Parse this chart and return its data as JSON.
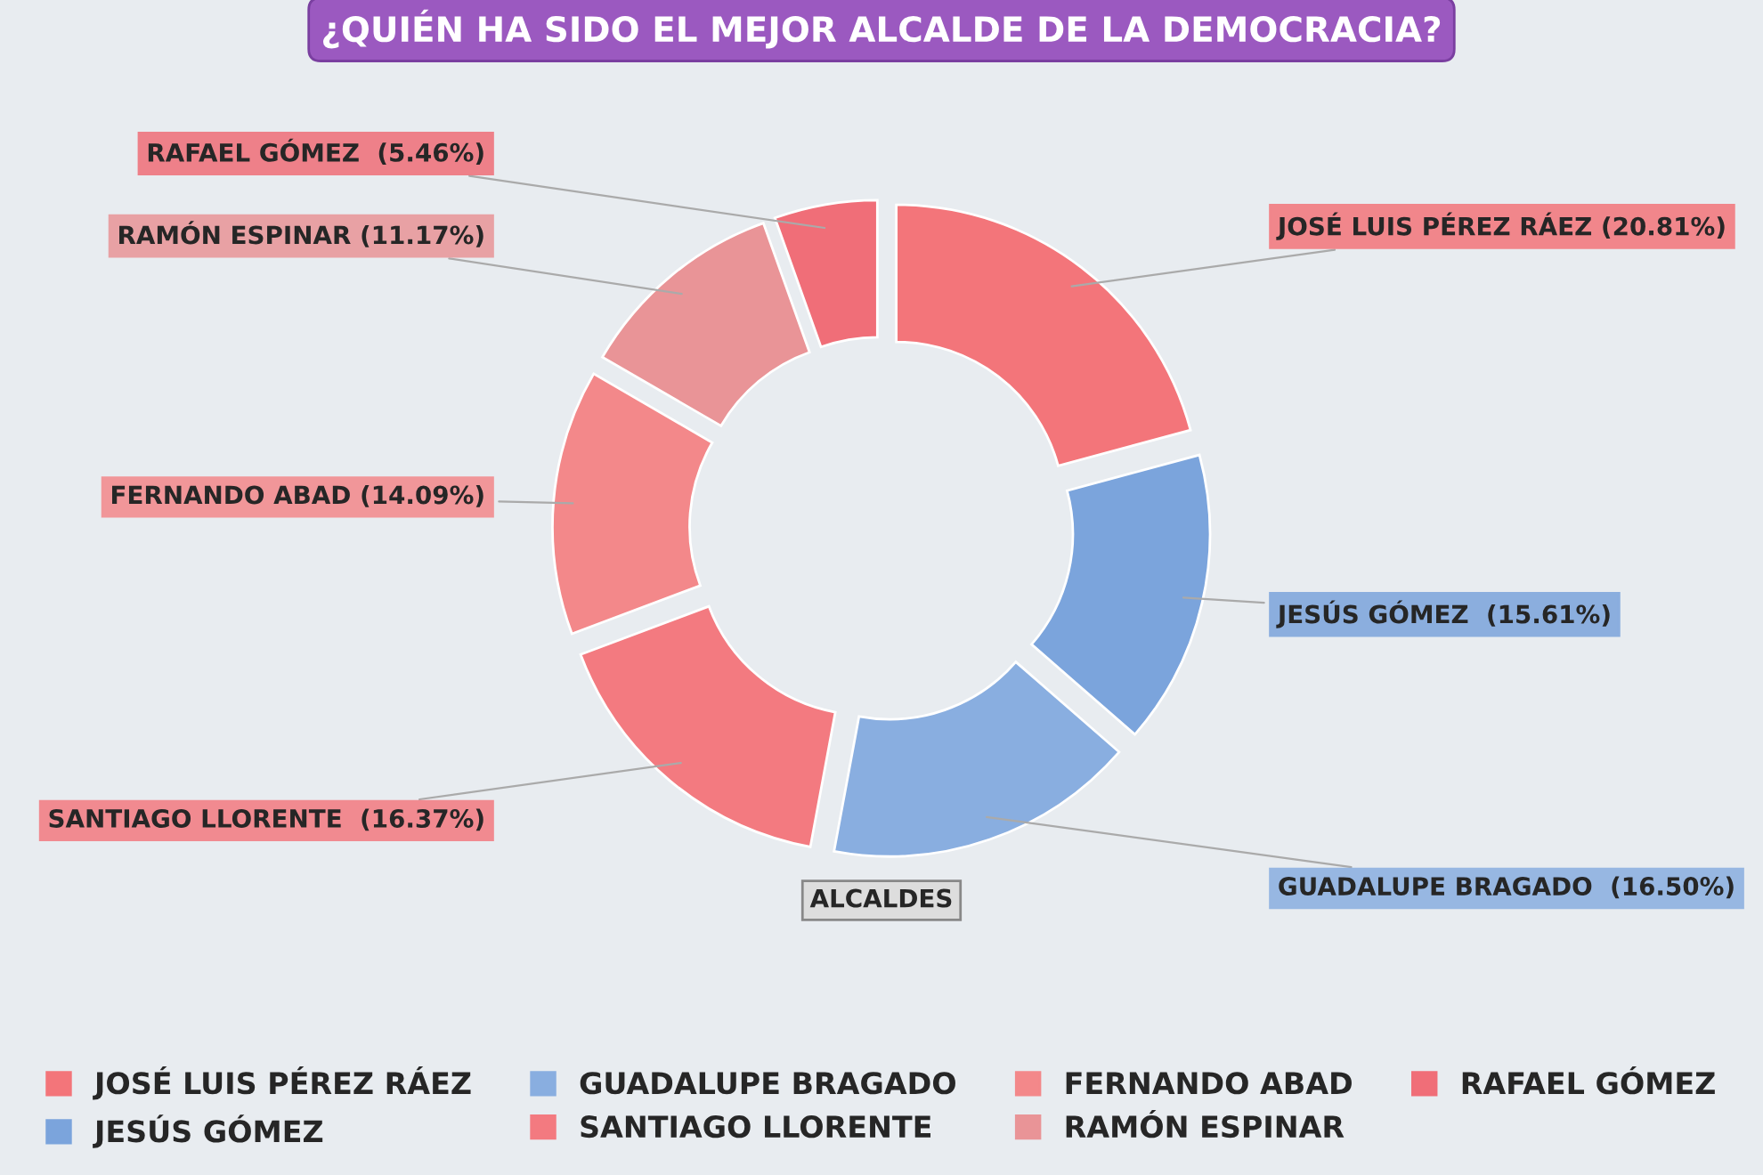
{
  "chart_data": {
    "type": "donut",
    "title": "¿QUIÉN HA SIDO EL MEJOR ALCALDE DE LA DEMOCRACIA?",
    "categories": [
      "JOSÉ LUIS PÉREZ RÁEZ",
      "JESÚS GÓMEZ",
      "GUADALUPE BRAGADO",
      "SANTIAGO LLORENTE",
      "FERNANDO ABAD",
      "RAMÓN ESPINAR",
      "RAFAEL GÓMEZ"
    ],
    "values": [
      20.81,
      15.61,
      16.5,
      16.37,
      14.09,
      11.17,
      5.46
    ],
    "colors": [
      "#f3757a",
      "#7ba4dc",
      "#89aee0",
      "#f37a80",
      "#f3888a",
      "#e99497",
      "#f06e78"
    ],
    "value_labels": [
      "JOSÉ LUIS PÉREZ RÁEZ (20.81%)",
      "JESÚS GÓMEZ  (15.61%)",
      "GUADALUPE BRAGADO  (16.50%)",
      "SANTIAGO LLORENTE  (16.37%)",
      "FERNANDO ABAD (14.09%)",
      "RAMÓN ESPINAR (11.17%)",
      "RAFAEL GÓMEZ  (5.46%)"
    ],
    "annotations": [
      "ALCALDES"
    ],
    "legend": "bottom"
  }
}
